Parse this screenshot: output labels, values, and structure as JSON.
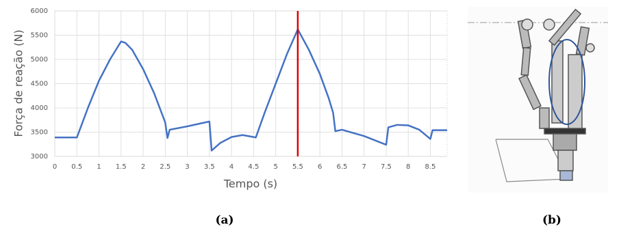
{
  "chart_data": {
    "type": "line",
    "x_label": "Tempo (s)",
    "y_label": "Força de reação (N)",
    "xlim": [
      0,
      8.88
    ],
    "ylim": [
      3000,
      6000
    ],
    "xticks": [
      0,
      0.5,
      1,
      1.5,
      2,
      2.5,
      3,
      3.5,
      4,
      4.5,
      5,
      5.5,
      6,
      6.5,
      7,
      7.5,
      8,
      8.5
    ],
    "yticks": [
      3000,
      3500,
      4000,
      4500,
      5000,
      5500,
      6000
    ],
    "grid": true,
    "x": [
      0,
      0.5,
      0.75,
      1,
      1.25,
      1.5,
      1.6,
      1.75,
      2,
      2.25,
      2.5,
      2.55,
      2.6,
      3,
      3.5,
      3.55,
      3.75,
      4,
      4.25,
      4.5,
      4.55,
      4.75,
      5,
      5.25,
      5.5,
      5.75,
      6,
      6.2,
      6.3,
      6.35,
      6.5,
      7,
      7.5,
      7.55,
      7.75,
      8,
      8.25,
      8.5,
      8.55,
      8.88
    ],
    "series": [
      {
        "color": "#4472c4",
        "values": [
          3390,
          3390,
          4000,
          4560,
          5000,
          5370,
          5340,
          5200,
          4800,
          4300,
          3700,
          3380,
          3550,
          3620,
          3720,
          3120,
          3280,
          3400,
          3440,
          3400,
          3390,
          3900,
          4500,
          5100,
          5620,
          5200,
          4700,
          4200,
          3900,
          3520,
          3550,
          3420,
          3240,
          3600,
          3650,
          3640,
          3550,
          3360,
          3540,
          3540
        ]
      }
    ],
    "vline": {
      "x": 5.5,
      "color": "#e00000"
    }
  },
  "captions": [
    "(a)",
    "(b)"
  ]
}
